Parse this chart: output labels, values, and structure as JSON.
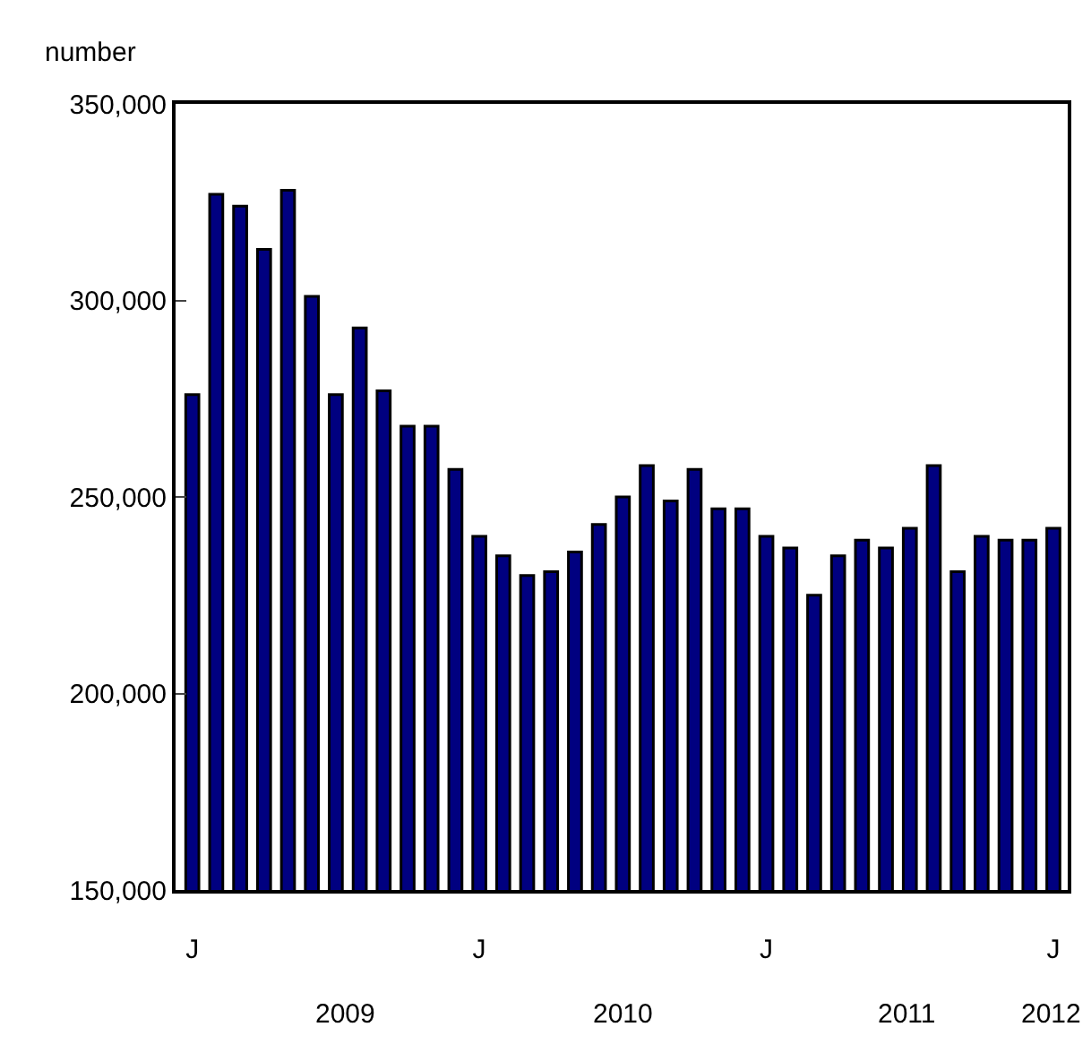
{
  "chart_data": {
    "type": "bar",
    "ylabel": "number",
    "categories": [
      "J",
      null,
      null,
      null,
      null,
      null,
      null,
      null,
      null,
      null,
      null,
      null,
      "J",
      null,
      null,
      null,
      null,
      null,
      null,
      null,
      null,
      null,
      null,
      null,
      "J",
      null,
      null,
      null,
      null,
      null,
      null,
      null,
      null,
      null,
      null,
      null,
      "J"
    ],
    "series": [
      {
        "color": "#000080",
        "values": [
          276000,
          327000,
          324000,
          313000,
          328000,
          301000,
          276000,
          293000,
          277000,
          268000,
          268000,
          257000,
          240000,
          235000,
          230000,
          231000,
          236000,
          243000,
          250000,
          258000,
          249000,
          257000,
          247000,
          247000,
          240000,
          237000,
          225000,
          235000,
          239000,
          237000,
          242000,
          258000,
          231000,
          240000,
          239000,
          239000,
          242000
        ]
      }
    ],
    "ylim": [
      150000,
      350000
    ],
    "yticks": [
      {
        "value": 150000,
        "label": "150,000"
      },
      {
        "value": 200000,
        "label": "200,000"
      },
      {
        "value": 250000,
        "label": "250,000"
      },
      {
        "value": 300000,
        "label": "300,000"
      },
      {
        "value": 350000,
        "label": "350,000"
      }
    ],
    "annotations": [
      "2009",
      "2010",
      "2011",
      "2012"
    ]
  }
}
